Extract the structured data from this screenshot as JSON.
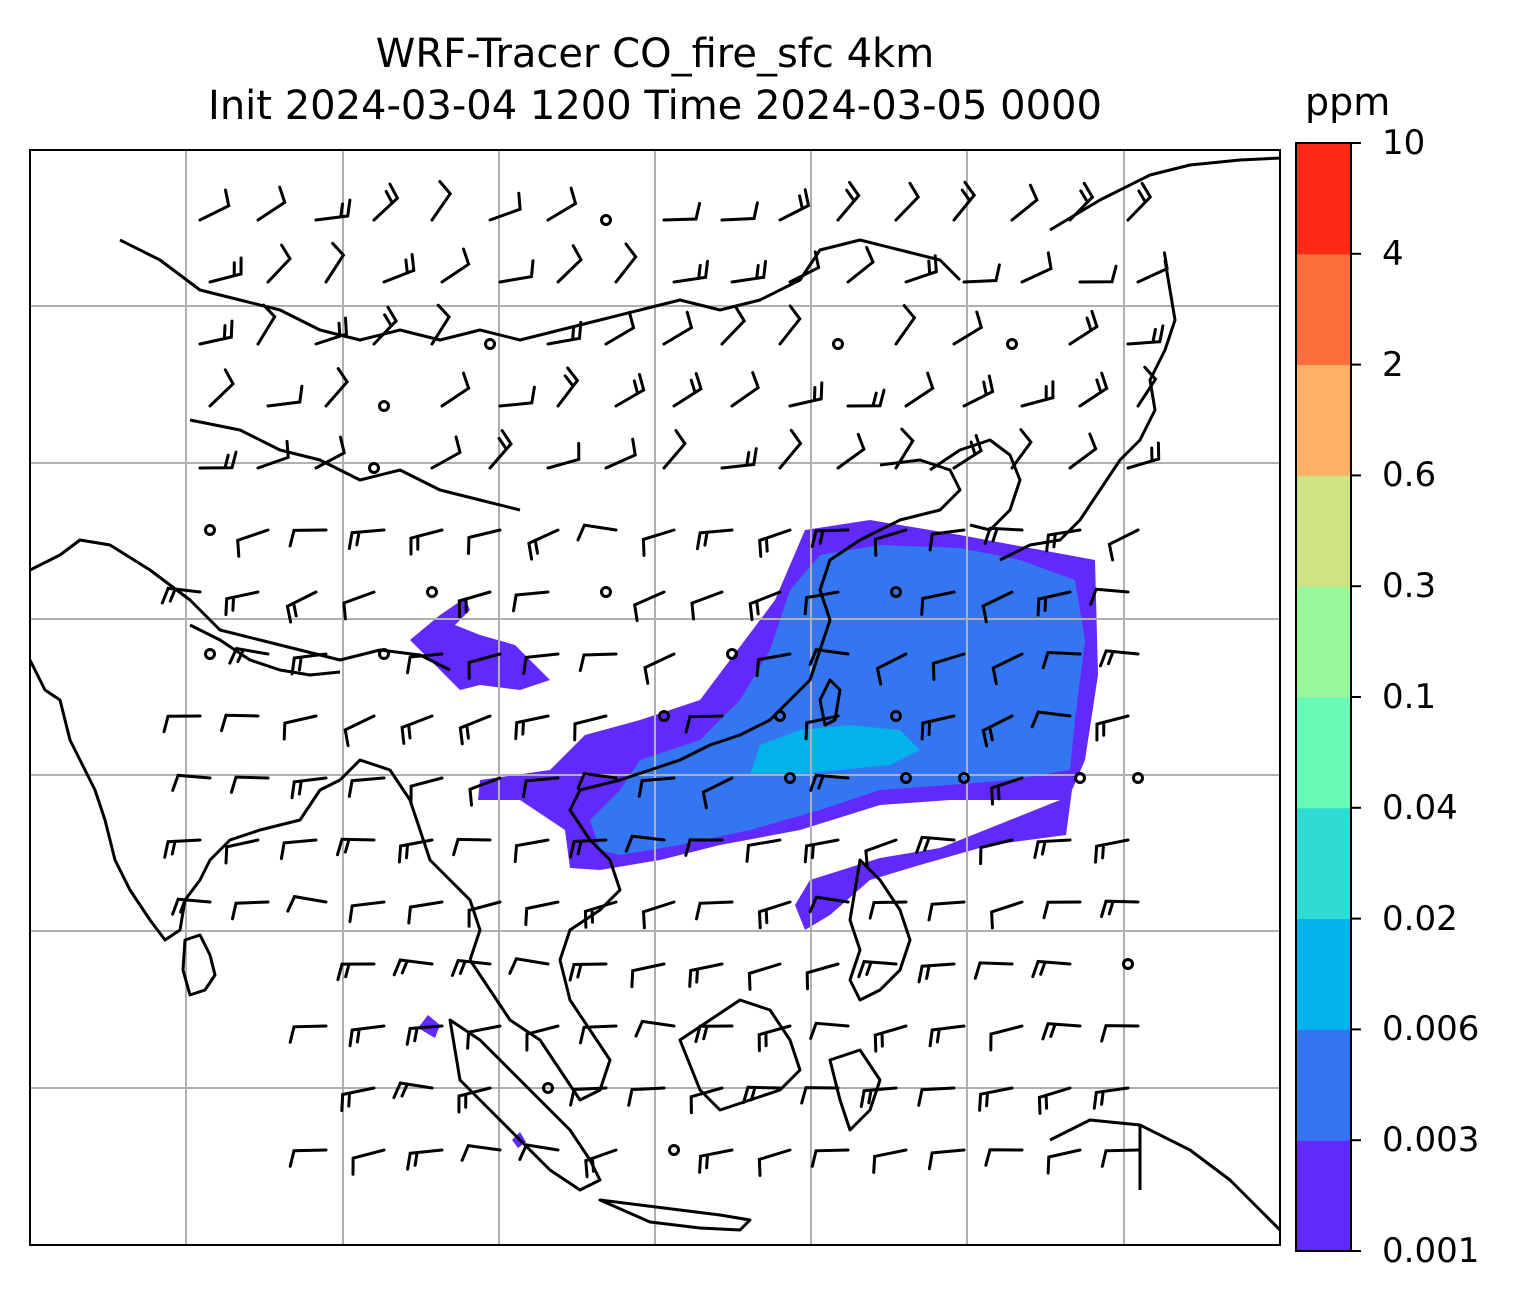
{
  "title": {
    "line1": "WRF-Tracer CO_fire_sfc 4km",
    "line2": "Init 2024-03-04 1200 Time 2024-03-05 0000"
  },
  "colorbar": {
    "unit": "ppm",
    "levels": [
      "0.001",
      "0.003",
      "0.006",
      "0.02",
      "0.04",
      "0.1",
      "0.3",
      "0.6",
      "2",
      "4",
      "10"
    ],
    "colors": [
      "#6229fb",
      "#3475f0",
      "#02b2ea",
      "#2fdbd3",
      "#68fbb8",
      "#99f99a",
      "#cfe284",
      "#feb065",
      "#fe6f3d",
      "#fe2a15"
    ]
  },
  "map": {
    "background": "#ffffff",
    "gridlines": true,
    "plume_colors": {
      "outer": "#6229fb",
      "mid": "#3475f0",
      "core": "#02b2ea"
    }
  }
}
